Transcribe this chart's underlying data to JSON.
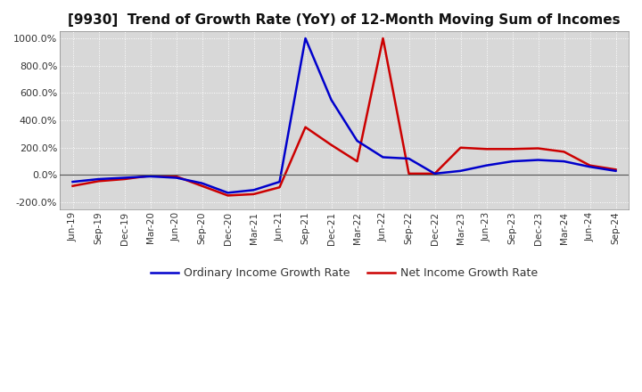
{
  "title": "[9930]  Trend of Growth Rate (YoY) of 12-Month Moving Sum of Incomes",
  "title_fontsize": 11,
  "ylim": [
    -250,
    1050
  ],
  "yticks": [
    -200,
    0,
    200,
    400,
    600,
    800,
    1000
  ],
  "background_color": "#ffffff",
  "plot_bg_color": "#d8d8d8",
  "grid_color": "#ffffff",
  "legend_labels": [
    "Ordinary Income Growth Rate",
    "Net Income Growth Rate"
  ],
  "legend_colors": [
    "#0000cc",
    "#cc0000"
  ],
  "x_labels": [
    "Jun-19",
    "Sep-19",
    "Dec-19",
    "Mar-20",
    "Jun-20",
    "Sep-20",
    "Dec-20",
    "Mar-21",
    "Jun-21",
    "Sep-21",
    "Dec-21",
    "Mar-22",
    "Jun-22",
    "Sep-22",
    "Dec-22",
    "Mar-23",
    "Jun-23",
    "Sep-23",
    "Dec-23",
    "Mar-24",
    "Jun-24",
    "Sep-24"
  ],
  "ordinary_income_growth": [
    -50,
    -30,
    -20,
    -10,
    -20,
    -60,
    -130,
    -110,
    -50,
    1000,
    550,
    250,
    130,
    120,
    10,
    30,
    70,
    100,
    110,
    100,
    60,
    30
  ],
  "net_income_growth": [
    -80,
    -45,
    -30,
    -5,
    -10,
    -80,
    -150,
    -140,
    -90,
    350,
    220,
    100,
    1000,
    10,
    10,
    200,
    190,
    190,
    195,
    170,
    70,
    40
  ]
}
